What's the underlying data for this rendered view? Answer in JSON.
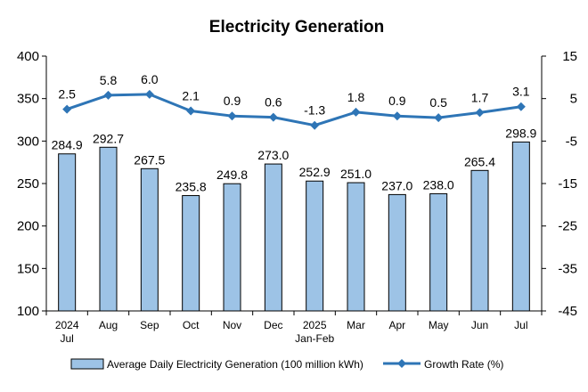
{
  "chart_data": {
    "type": "bar",
    "title": "Electricity Generation",
    "categories": [
      [
        "2024",
        "Jul"
      ],
      [
        "Aug"
      ],
      [
        "Sep"
      ],
      [
        "Oct"
      ],
      [
        "Nov"
      ],
      [
        "Dec"
      ],
      [
        "2025",
        "Jan-Feb"
      ],
      [
        "Mar"
      ],
      [
        "Apr"
      ],
      [
        "May"
      ],
      [
        "Jun"
      ],
      [
        "Jul"
      ]
    ],
    "series": [
      {
        "name": "Average Daily Electricity Generation (100 million kWh)",
        "type": "bar",
        "axis": "left",
        "color": "#9dc3e6",
        "values": [
          284.9,
          292.7,
          267.5,
          235.8,
          249.8,
          273.0,
          252.9,
          251.0,
          237.0,
          238.0,
          265.4,
          298.9
        ],
        "labels": [
          "284.9",
          "292.7",
          "267.5",
          "235.8",
          "249.8",
          "273.0",
          "252.9",
          "251.0",
          "237.0",
          "238.0",
          "265.4",
          "298.9"
        ]
      },
      {
        "name": "Growth Rate (%)",
        "type": "line",
        "axis": "right",
        "color": "#2e75b6",
        "values": [
          2.5,
          5.8,
          6.0,
          2.1,
          0.9,
          0.6,
          -1.3,
          1.8,
          0.9,
          0.5,
          1.7,
          3.1
        ],
        "labels": [
          "2.5",
          "5.8",
          "6.0",
          "2.1",
          "0.9",
          "0.6",
          "-1.3",
          "1.8",
          "0.9",
          "0.5",
          "1.7",
          "3.1"
        ]
      }
    ],
    "y_left": {
      "min": 100,
      "max": 400,
      "ticks": [
        "100",
        "150",
        "200",
        "250",
        "300",
        "350",
        "400"
      ]
    },
    "y_right": {
      "min": -45,
      "max": 15,
      "ticks": [
        "-45",
        "-35",
        "-25",
        "-15",
        "-5",
        "5",
        "15"
      ]
    },
    "grid": false,
    "legend_position": "bottom"
  }
}
